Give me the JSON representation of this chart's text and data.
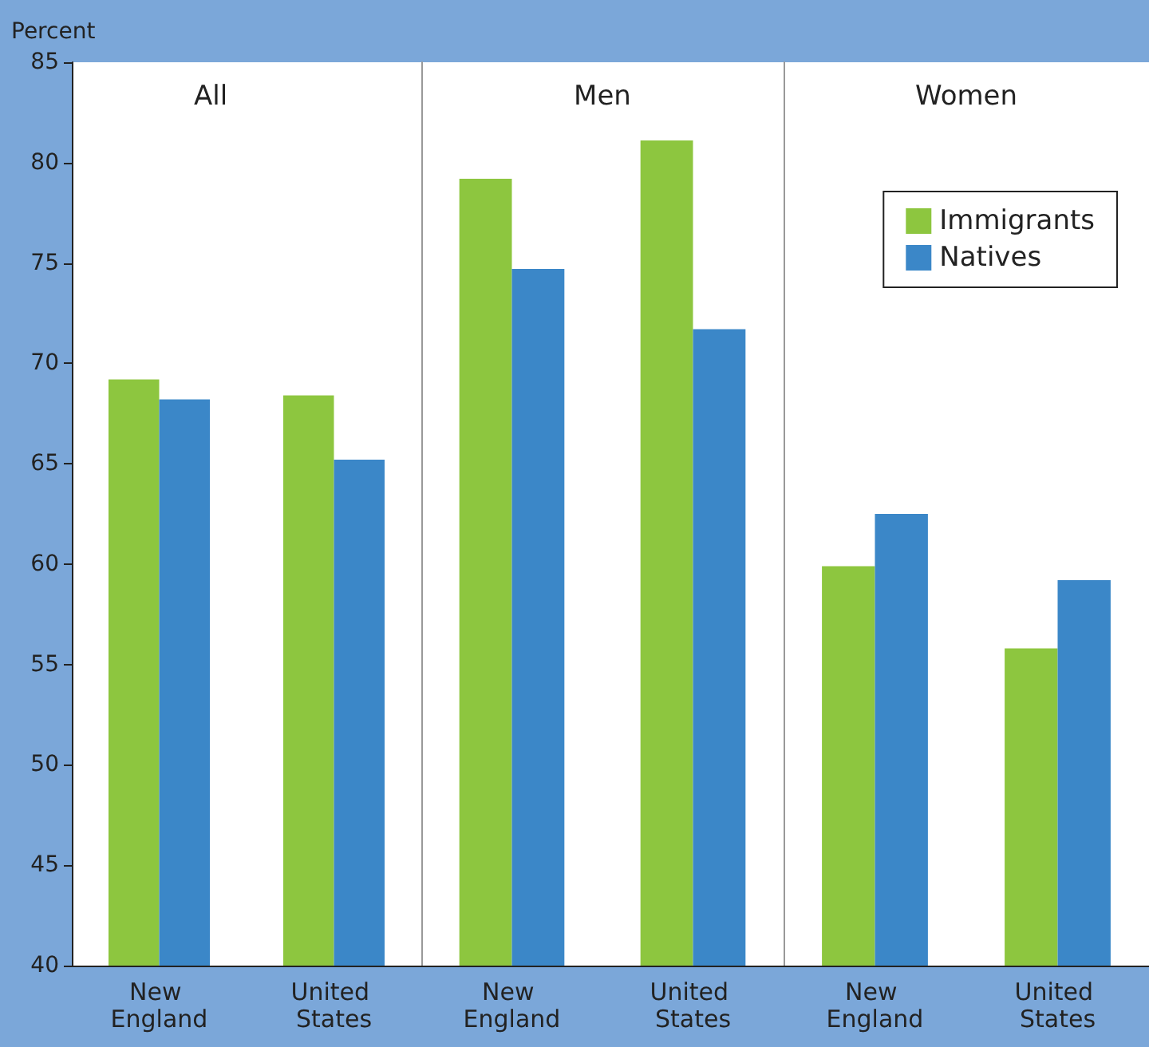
{
  "chart_data": [
    {
      "type": "bar",
      "title": "All",
      "ylabel": "Percent",
      "categories": [
        "New England",
        "United States"
      ],
      "series": [
        {
          "color": "#8dc63f",
          "values": [
            69.2,
            68.4
          ]
        },
        {
          "color": "#3b87c8",
          "values": [
            68.2,
            65.2
          ]
        }
      ],
      "ylim": [
        40,
        85
      ],
      "yticks": [
        40,
        45,
        50,
        55,
        60,
        65,
        70,
        75,
        80,
        85
      ],
      "grid": false,
      "legend": false
    },
    {
      "type": "bar",
      "title": "Men",
      "categories": [
        "New England",
        "United States"
      ],
      "series": [
        {
          "color": "#8dc63f",
          "values": [
            79.2,
            81.1
          ]
        },
        {
          "color": "#3b87c8",
          "values": [
            74.7,
            71.7
          ]
        }
      ],
      "ylim": [
        40,
        85
      ],
      "yticks": [
        40,
        45,
        50,
        55,
        60,
        65,
        70,
        75,
        80,
        85
      ],
      "grid": false,
      "legend": false,
      "tick_labels": "x"
    },
    {
      "type": "bar",
      "title": "Women",
      "categories": [
        "New England",
        "United States"
      ],
      "series": [
        {
          "name": "Immigrants",
          "color": "#8dc63f",
          "values": [
            59.9,
            55.8
          ]
        },
        {
          "name": "Natives",
          "color": "#3b87c8",
          "values": [
            62.5,
            59.2
          ]
        }
      ],
      "ylim": [
        40,
        85
      ],
      "yticks": [
        40,
        45,
        50,
        55,
        60,
        65,
        70,
        75,
        80,
        85
      ],
      "grid": false,
      "legend": "top right",
      "tick_labels": "x"
    }
  ]
}
